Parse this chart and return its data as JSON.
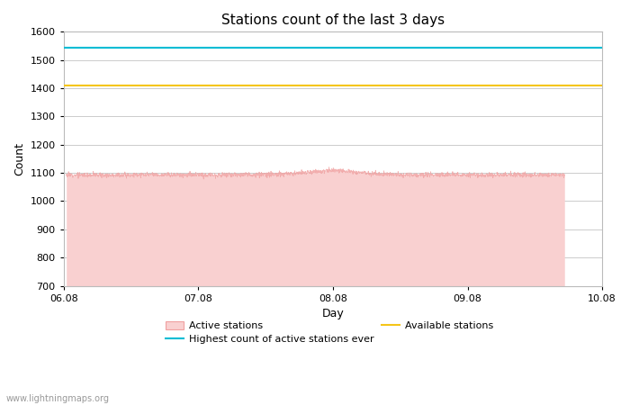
{
  "title": "Stations count of the last 3 days",
  "xlabel": "Day",
  "ylabel": "Count",
  "xlim_min": 0,
  "xlim_max": 4,
  "ylim": [
    700,
    1600
  ],
  "yticks": [
    700,
    800,
    900,
    1000,
    1100,
    1200,
    1300,
    1400,
    1500,
    1600
  ],
  "xtick_labels": [
    "06.08",
    "07.08",
    "08.08",
    "09.08",
    "10.08"
  ],
  "xtick_positions": [
    0,
    1,
    2,
    3,
    4
  ],
  "available_stations_y": 1410,
  "highest_ever_y": 1545,
  "active_stations_mean": 1093,
  "active_fill_color": "#f9d0d0",
  "active_line_color": "#f0a0a0",
  "available_color": "#f5c518",
  "highest_color": "#00bcd4",
  "watermark": "www.lightningmaps.org",
  "background_color": "#ffffff",
  "grid_color": "#cccccc",
  "title_fontsize": 11,
  "axis_label_fontsize": 9,
  "tick_fontsize": 8,
  "legend_fontsize": 8,
  "watermark_fontsize": 7,
  "active_data_x_start": 0.02,
  "active_data_x_end": 3.72,
  "n_points": 2000
}
